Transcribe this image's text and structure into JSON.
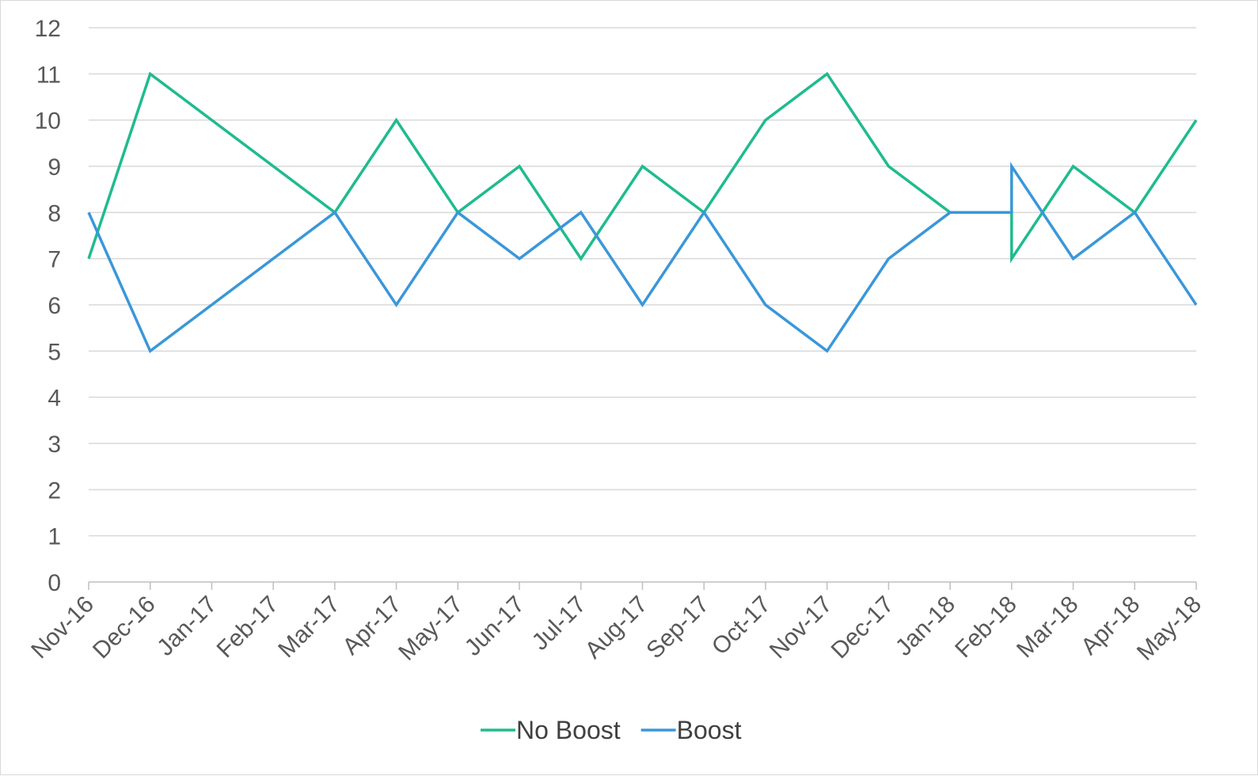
{
  "chart_data": {
    "type": "line",
    "title": "",
    "xlabel": "",
    "ylabel": "",
    "ylim": [
      0,
      12
    ],
    "yticks": [
      "0",
      "1",
      "2",
      "3",
      "4",
      "5",
      "6",
      "7",
      "8",
      "9",
      "10",
      "11",
      "12"
    ],
    "grid": true,
    "legend_position": "bottom",
    "x": [
      "2016-11-01",
      "2016-12-15",
      "2017-01-15",
      "2017-02-15",
      "2017-03-15",
      "2017-04-15",
      "2017-05-15",
      "2017-06-15",
      "2017-07-15",
      "2017-08-15",
      "2017-09-15",
      "2017-10-15",
      "2017-11-15",
      "2017-12-15",
      "2018-01-15",
      "2018-02-15",
      "2018-02-15",
      "2018-03-15",
      "2018-04-15",
      "2018-05-15"
    ],
    "x_tick_dates": [
      "2016-11-01",
      "2016-12-01",
      "2017-01-01",
      "2017-02-01",
      "2017-03-01",
      "2017-04-01",
      "2017-05-01",
      "2017-06-01",
      "2017-07-01",
      "2017-08-01",
      "2017-09-01",
      "2017-10-01",
      "2017-11-01",
      "2017-12-01",
      "2018-01-01",
      "2018-02-01",
      "2018-03-01",
      "2018-04-01",
      "2018-05-01"
    ],
    "x_tick_labels": [
      "Nov-16",
      "Dec-16",
      "Jan-17",
      "Feb-17",
      "Mar-17",
      "Apr-17",
      "May-17",
      "Jun-17",
      "Jul-17",
      "Aug-17",
      "Sep-17",
      "Oct-17",
      "Nov-17",
      "Dec-17",
      "Jan-18",
      "Feb-18",
      "Mar-18",
      "Apr-18",
      "May-18"
    ],
    "series": [
      {
        "name": "No Boost",
        "color": "#1fbb8e",
        "points": [
          {
            "x": "2016-11-01",
            "y": 7
          },
          {
            "x": "2016-12-01",
            "y": 11
          },
          {
            "x": "2017-03-01",
            "y": 8
          },
          {
            "x": "2017-04-01",
            "y": 10
          },
          {
            "x": "2017-05-01",
            "y": 8
          },
          {
            "x": "2017-06-01",
            "y": 9
          },
          {
            "x": "2017-07-01",
            "y": 7
          },
          {
            "x": "2017-08-01",
            "y": 9
          },
          {
            "x": "2017-09-01",
            "y": 8
          },
          {
            "x": "2017-10-01",
            "y": 10
          },
          {
            "x": "2017-11-01",
            "y": 11
          },
          {
            "x": "2017-12-01",
            "y": 9
          },
          {
            "x": "2018-01-01",
            "y": 8
          },
          {
            "x": "2018-02-01",
            "y": 8
          },
          {
            "x": "2018-02-01",
            "y": 7
          },
          {
            "x": "2018-03-01",
            "y": 9
          },
          {
            "x": "2018-04-01",
            "y": 8
          },
          {
            "x": "2018-05-01",
            "y": 10
          }
        ]
      },
      {
        "name": "Boost",
        "color": "#3a97d9",
        "points": [
          {
            "x": "2016-11-01",
            "y": 8
          },
          {
            "x": "2016-12-01",
            "y": 5
          },
          {
            "x": "2017-03-01",
            "y": 8
          },
          {
            "x": "2017-04-01",
            "y": 6
          },
          {
            "x": "2017-05-01",
            "y": 8
          },
          {
            "x": "2017-06-01",
            "y": 7
          },
          {
            "x": "2017-07-01",
            "y": 8
          },
          {
            "x": "2017-08-01",
            "y": 6
          },
          {
            "x": "2017-09-01",
            "y": 8
          },
          {
            "x": "2017-10-01",
            "y": 6
          },
          {
            "x": "2017-11-01",
            "y": 5
          },
          {
            "x": "2017-12-01",
            "y": 7
          },
          {
            "x": "2018-01-01",
            "y": 8
          },
          {
            "x": "2018-02-01",
            "y": 8
          },
          {
            "x": "2018-02-01",
            "y": 9
          },
          {
            "x": "2018-03-01",
            "y": 7
          },
          {
            "x": "2018-04-01",
            "y": 8
          },
          {
            "x": "2018-05-01",
            "y": 6
          }
        ]
      }
    ]
  }
}
